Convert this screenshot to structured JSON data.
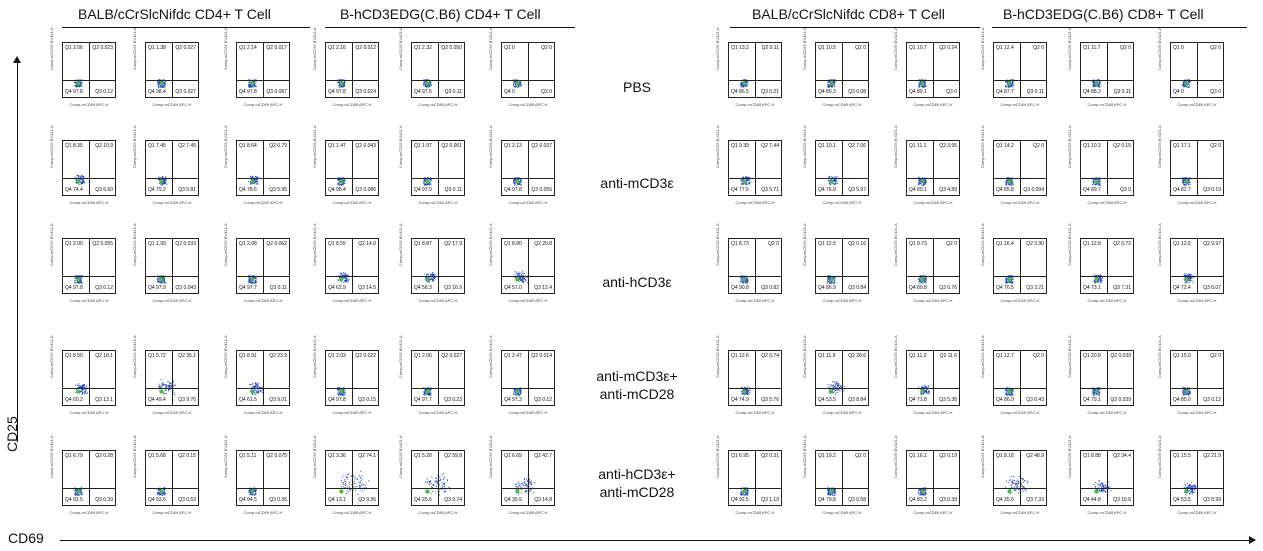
{
  "headers": [
    "BALB/cCrSlcNifdc CD4+ T Cell",
    "B-hCD3EDG(C.B6) CD4+ T Cell",
    "BALB/cCrSlcNifdc CD8+ T Cell",
    "B-hCD3EDG(C.B6) CD8+ T Cell"
  ],
  "treatments": [
    [
      "PBS"
    ],
    [
      "anti-mCD3ε"
    ],
    [
      "anti-hCD3ε"
    ],
    [
      "anti-mCD3ε+",
      "anti-mCD28"
    ],
    [
      "anti-hCD3ε+",
      "anti-mCD28"
    ]
  ],
  "axes": {
    "y_label": "CD25",
    "x_label": "CD69"
  },
  "plot_axis_labels": {
    "x": "Comp-mCD69 APC-H",
    "y": "Comp-mCD25 BV421-A"
  },
  "quadrants": {
    "left": [
      [
        [
          "Q1 2.06",
          "Q2 0.023",
          "Q3 0.12",
          "Q4 97.8"
        ],
        [
          "Q1 1.38",
          "Q2 0.027",
          "Q3 0.027",
          "Q4 98.4"
        ],
        [
          "Q1 2.14",
          "Q2 0.017",
          "Q3 0.087",
          "Q4 97.8"
        ],
        [
          "Q1 2.16",
          "Q2 0.012",
          "Q3 0.024",
          "Q4 97.8"
        ],
        [
          "Q1 2.32",
          "Q2 0.050",
          "Q3 0.11",
          "Q4 97.5"
        ],
        [
          "Q1 0",
          "Q2 0",
          "Q3 0",
          "Q4 0"
        ]
      ],
      [
        [
          "Q1 8.35",
          "Q2 10.9",
          "Q3 6.60",
          "Q4 74.4"
        ],
        [
          "Q1 7.45",
          "Q2 7.45",
          "Q3 5.81",
          "Q4 79.2"
        ],
        [
          "Q1 8.64",
          "Q2 6.79",
          "Q3 5.95",
          "Q4 78.6"
        ],
        [
          "Q1 1.47",
          "Q2 0.043",
          "Q3 0.086",
          "Q4 98.4"
        ],
        [
          "Q1 1.97",
          "Q2 0.061",
          "Q3 0.11",
          "Q4 97.9"
        ],
        [
          "Q1 2.13",
          "Q2 0.037",
          "Q3 0.055",
          "Q4 97.8"
        ]
      ],
      [
        [
          "Q1 2.00",
          "Q2 0.055",
          "Q3 0.12",
          "Q4 97.8"
        ],
        [
          "Q1 1.99",
          "Q2 0.033",
          "Q3 0.043",
          "Q4 97.9"
        ],
        [
          "Q1 2.08",
          "Q2 0.062",
          "Q3 0.11",
          "Q4 97.7"
        ],
        [
          "Q1 8.55",
          "Q2 14.0",
          "Q3 14.5",
          "Q4 62.9"
        ],
        [
          "Q1 8.87",
          "Q2 17.9",
          "Q3 16.9",
          "Q4 56.3"
        ],
        [
          "Q1 8.80",
          "Q2 20.8",
          "Q3 12.4",
          "Q4 57.0"
        ]
      ],
      [
        [
          "Q1 8.50",
          "Q2 18.1",
          "Q3 13.1",
          "Q4 60.2"
        ],
        [
          "Q1 5.72",
          "Q2 35.1",
          "Q3 9.76",
          "Q4 49.4"
        ],
        [
          "Q1 8.91",
          "Q2 23.9",
          "Q3 9.01",
          "Q4 61.5"
        ],
        [
          "Q1 2.03",
          "Q2 0.022",
          "Q3 0.15",
          "Q4 97.8"
        ],
        [
          "Q1 2.06",
          "Q2 0.027",
          "Q3 0.23",
          "Q4 97.7"
        ],
        [
          "Q1 2.47",
          "Q2 0.014",
          "Q3 0.12",
          "Q4 97.3"
        ]
      ],
      [
        [
          "Q1 6.79",
          "Q2 0.28",
          "Q3 0.39",
          "Q4 92.5"
        ],
        [
          "Q1 5.68",
          "Q2 0.15",
          "Q3 0.53",
          "Q4 93.6"
        ],
        [
          "Q1 5.11",
          "Q2 0.075",
          "Q3 0.36",
          "Q4 94.5"
        ],
        [
          "Q1 3.36",
          "Q2 74.1",
          "Q3 9.36",
          "Q4 13.1"
        ],
        [
          "Q1 5.28",
          "Q2 59.8",
          "Q3 9.74",
          "Q4 25.6"
        ],
        [
          "Q1 6.69",
          "Q2 42.7",
          "Q3 14.8",
          "Q4 35.9"
        ]
      ]
    ],
    "right": [
      [
        [
          "Q1 13.2",
          "Q2 0.11",
          "Q3 0.21",
          "Q4 86.5"
        ],
        [
          "Q1 10.5",
          "Q2 0",
          "Q3 0.08",
          "Q4 89.3"
        ],
        [
          "Q1 10.7",
          "Q2 0.24",
          "Q3 0",
          "Q4 89.1"
        ],
        [
          "Q1 12.4",
          "Q2 0",
          "Q3 0.11",
          "Q4 87.7"
        ],
        [
          "Q1 11.7",
          "Q2 0",
          "Q3 0.11",
          "Q4 88.3"
        ],
        [
          "Q1 0",
          "Q2 0",
          "Q3 0",
          "Q4 0"
        ]
      ],
      [
        [
          "Q1 9.39",
          "Q2 7.44",
          "Q3 5.71",
          "Q4 77.5"
        ],
        [
          "Q1 10.1",
          "Q2 7.06",
          "Q3 5.97",
          "Q4 76.9"
        ],
        [
          "Q1 11.1",
          "Q2 3.95",
          "Q3 4.89",
          "Q4 80.1"
        ],
        [
          "Q1 14.2",
          "Q2 0",
          "Q3 0.094",
          "Q4 85.8"
        ],
        [
          "Q1 10.3",
          "Q2 0.15",
          "Q3 0",
          "Q4 89.7"
        ],
        [
          "Q1 17.1",
          "Q2 0",
          "Q3 0.19",
          "Q4 82.7"
        ]
      ],
      [
        [
          "Q1 8.73",
          "Q2 0",
          "Q3 0.82",
          "Q4 90.8"
        ],
        [
          "Q1 12.5",
          "Q2 0.16",
          "Q3 0.84",
          "Q4 86.9"
        ],
        [
          "Q1 9.73",
          "Q2 0",
          "Q3 0.76",
          "Q4 89.8"
        ],
        [
          "Q1 16.4",
          "Q2 3.90",
          "Q3 3.21",
          "Q4 76.5"
        ],
        [
          "Q1 12.8",
          "Q2 6.72",
          "Q3 7.31",
          "Q4 73.1"
        ],
        [
          "Q1 12.6",
          "Q2 9.97",
          "Q3 6.07",
          "Q4 72.4"
        ]
      ],
      [
        [
          "Q1 12.6",
          "Q2 6.74",
          "Q3 5.76",
          "Q4 74.9"
        ],
        [
          "Q1 11.9",
          "Q2 28.6",
          "Q3 8.84",
          "Q4 53.5"
        ],
        [
          "Q1 11.3",
          "Q2 11.6",
          "Q3 5.36",
          "Q4 71.8"
        ],
        [
          "Q1 12.7",
          "Q2 0",
          "Q3 0.43",
          "Q4 86.9"
        ],
        [
          "Q1 20.8",
          "Q2 0.039",
          "Q3 0.039",
          "Q4 79.1"
        ],
        [
          "Q1 15.0",
          "Q2 0",
          "Q3 0.12",
          "Q4 85.0"
        ]
      ],
      [
        [
          "Q1 6.95",
          "Q2 0.31",
          "Q3 1.19",
          "Q4 92.5"
        ],
        [
          "Q1 19.2",
          "Q2 0",
          "Q3 0.58",
          "Q4 79.8"
        ],
        [
          "Q1 16.1",
          "Q2 0.19",
          "Q3 0.39",
          "Q4 83.2"
        ],
        [
          "Q1 8.18",
          "Q2 48.9",
          "Q3 7.33",
          "Q4 35.6"
        ],
        [
          "Q1 8.88",
          "Q2 34.4",
          "Q3 10.8",
          "Q4 44.8"
        ],
        [
          "Q1 15.5",
          "Q2 21.9",
          "Q3 8.99",
          "Q4 53.5"
        ]
      ]
    ]
  },
  "colors": {
    "dot": "#2040d0",
    "dense": "#40c040",
    "core": "#f0c020"
  }
}
